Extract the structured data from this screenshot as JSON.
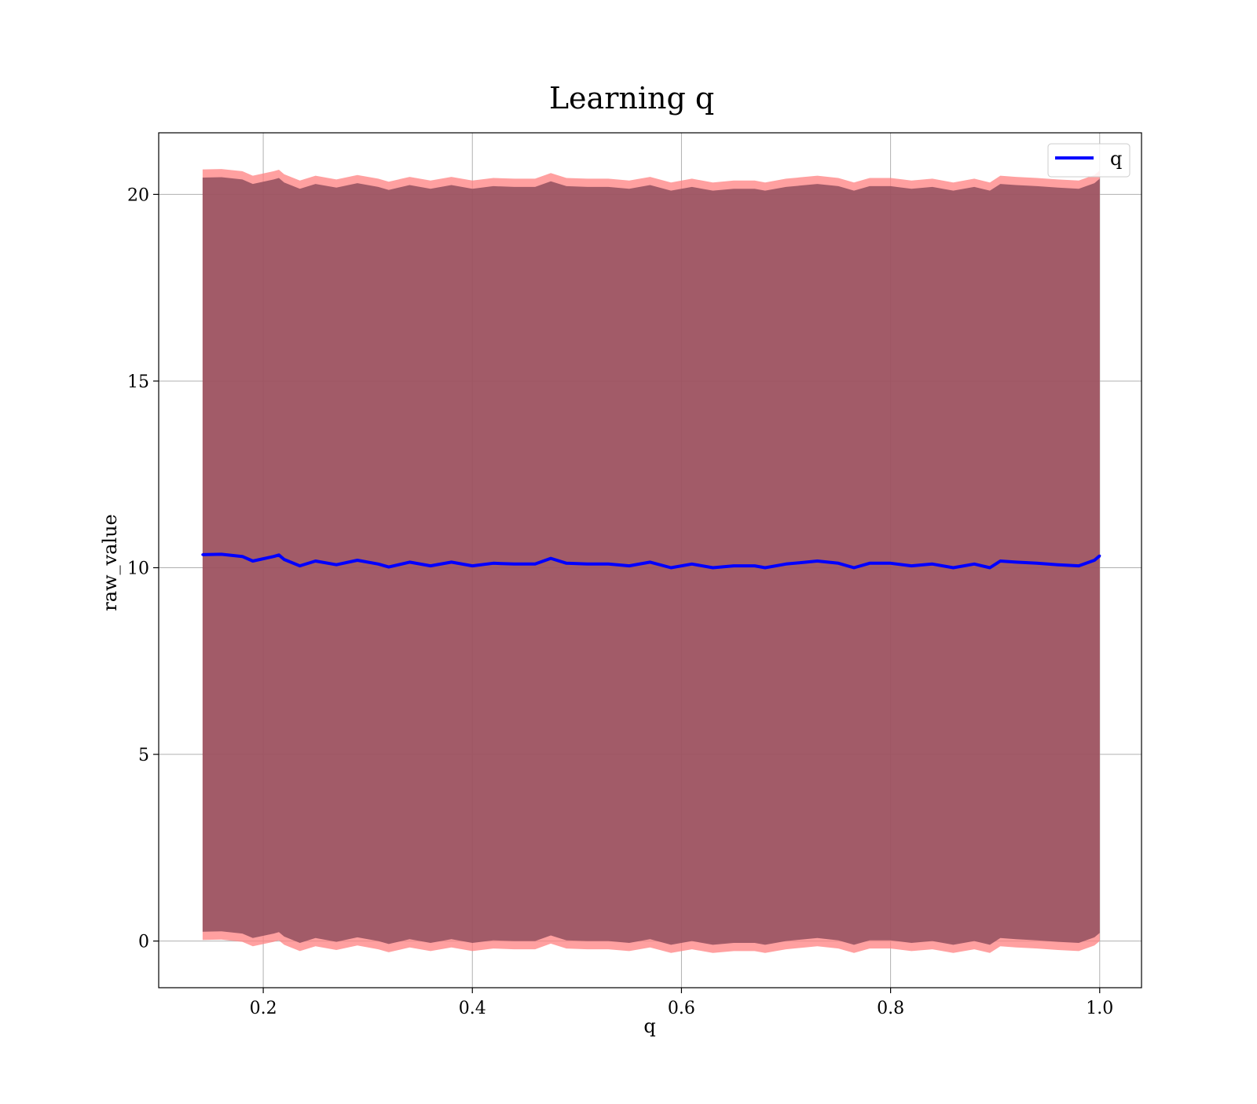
{
  "chart_data": {
    "type": "line",
    "title": "Learning q",
    "xlabel": "q",
    "ylabel": "raw_value",
    "xlim": [
      0.1,
      1.04
    ],
    "ylim": [
      -1.25,
      21.65
    ],
    "xticks": [
      0.2,
      0.4,
      0.6,
      0.8,
      1.0
    ],
    "xtick_labels": [
      "0.2",
      "0.4",
      "0.6",
      "0.8",
      "1.0"
    ],
    "yticks": [
      0,
      5,
      10,
      15,
      20
    ],
    "ytick_labels": [
      "0",
      "5",
      "10",
      "15",
      "20"
    ],
    "grid": true,
    "legend": {
      "position": "top-right",
      "entries": [
        "q"
      ]
    },
    "colors": {
      "line": "#0000ff",
      "band_outer": "#ff8080",
      "band_inner": "#8b4a5a",
      "grid": "#b0b0b0"
    },
    "series": [
      {
        "name": "q",
        "x": [
          0.142,
          0.16,
          0.18,
          0.19,
          0.21,
          0.215,
          0.22,
          0.235,
          0.25,
          0.27,
          0.29,
          0.31,
          0.32,
          0.34,
          0.36,
          0.38,
          0.4,
          0.42,
          0.44,
          0.46,
          0.475,
          0.49,
          0.51,
          0.53,
          0.55,
          0.57,
          0.59,
          0.61,
          0.63,
          0.65,
          0.67,
          0.68,
          0.7,
          0.73,
          0.75,
          0.765,
          0.78,
          0.8,
          0.82,
          0.84,
          0.86,
          0.88,
          0.895,
          0.905,
          0.92,
          0.94,
          0.96,
          0.98,
          0.995,
          1.0
        ],
        "y": [
          10.35,
          10.36,
          10.3,
          10.18,
          10.3,
          10.34,
          10.22,
          10.05,
          10.18,
          10.08,
          10.2,
          10.1,
          10.02,
          10.15,
          10.05,
          10.15,
          10.05,
          10.12,
          10.1,
          10.1,
          10.25,
          10.12,
          10.1,
          10.1,
          10.05,
          10.15,
          10.0,
          10.1,
          10.0,
          10.05,
          10.05,
          10.0,
          10.1,
          10.18,
          10.12,
          10.0,
          10.12,
          10.12,
          10.05,
          10.1,
          10.0,
          10.1,
          10.0,
          10.18,
          10.15,
          10.12,
          10.08,
          10.05,
          10.2,
          10.32
        ],
        "band_halfwidth": 10.1
      }
    ]
  }
}
